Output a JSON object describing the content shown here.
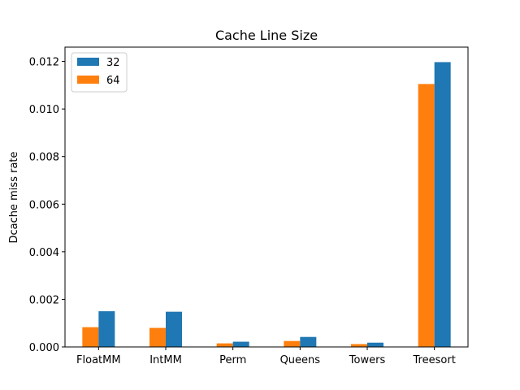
{
  "chart_data": {
    "type": "bar",
    "title": "Cache Line Size",
    "xlabel": "",
    "ylabel": "Dcache miss rate",
    "categories": [
      "FloatMM",
      "IntMM",
      "Perm",
      "Queens",
      "Towers",
      "Treesort"
    ],
    "series": [
      {
        "name": "64",
        "color": "#ff7f0e",
        "values": [
          0.00083,
          0.0008,
          0.00015,
          0.00025,
          0.00012,
          0.01105
        ]
      },
      {
        "name": "32",
        "color": "#1f77b4",
        "values": [
          0.0015,
          0.00148,
          0.00022,
          0.00042,
          0.00018,
          0.01197
        ]
      }
    ],
    "legend_order": [
      "32",
      "64"
    ],
    "legend_position": "top-left",
    "ylim": [
      0,
      0.0126
    ],
    "yticks": [
      "0.000",
      "0.002",
      "0.004",
      "0.006",
      "0.008",
      "0.010",
      "0.012"
    ],
    "ytick_values": [
      0,
      0.002,
      0.004,
      0.006,
      0.008,
      0.01,
      0.012
    ],
    "grid": false
  }
}
